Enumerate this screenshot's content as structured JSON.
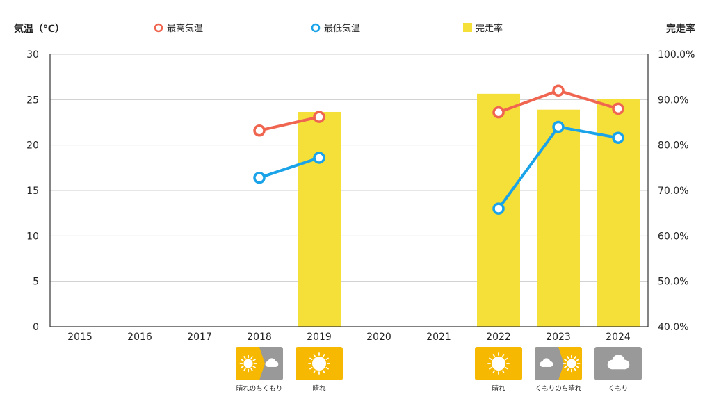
{
  "chart_data": {
    "type": "bar",
    "categories": [
      "2015",
      "2016",
      "2017",
      "2018",
      "2019",
      "2020",
      "2021",
      "2022",
      "2023",
      "2024"
    ],
    "ylabel_left": "気温（℃）",
    "ylabel_right": "完走率",
    "ylim_left": [
      0,
      30
    ],
    "yticks_left": [
      "0",
      "5",
      "10",
      "15",
      "20",
      "25",
      "30"
    ],
    "ylim_right": [
      40,
      100
    ],
    "yticks_right": [
      "40.0%",
      "50.0%",
      "60.0%",
      "70.0%",
      "80.0%",
      "90.0%",
      "100.0%"
    ],
    "grid": true,
    "legend_position": "top",
    "series": [
      {
        "name": "最高気温",
        "kind": "line",
        "axis": "left",
        "color": "#f0654f",
        "values": [
          null,
          null,
          null,
          21.6,
          23.1,
          null,
          null,
          23.6,
          26.0,
          24.0
        ]
      },
      {
        "name": "最低気温",
        "kind": "line",
        "axis": "left",
        "color": "#1aa3e8",
        "values": [
          null,
          null,
          null,
          16.4,
          18.6,
          null,
          null,
          13.0,
          22.0,
          20.8
        ]
      },
      {
        "name": "完走率",
        "kind": "bar",
        "axis": "right",
        "color": "#f5e03a",
        "values": [
          null,
          null,
          null,
          null,
          87.3,
          null,
          null,
          91.3,
          87.8,
          90.1
        ]
      }
    ],
    "weather": [
      null,
      null,
      null,
      {
        "label": "晴れのちくもり",
        "icon": "sun-then-cloud-icon"
      },
      {
        "label": "晴れ",
        "icon": "sun-icon"
      },
      null,
      null,
      {
        "label": "晴れ",
        "icon": "sun-icon"
      },
      {
        "label": "くもりのち晴れ",
        "icon": "cloud-then-sun-icon"
      },
      {
        "label": "くもり",
        "icon": "cloud-icon"
      }
    ],
    "colors": {
      "sun_tile": "#f6b800",
      "cloud_tile": "#999999",
      "grid": "#cccccc",
      "axis": "#333333"
    }
  }
}
